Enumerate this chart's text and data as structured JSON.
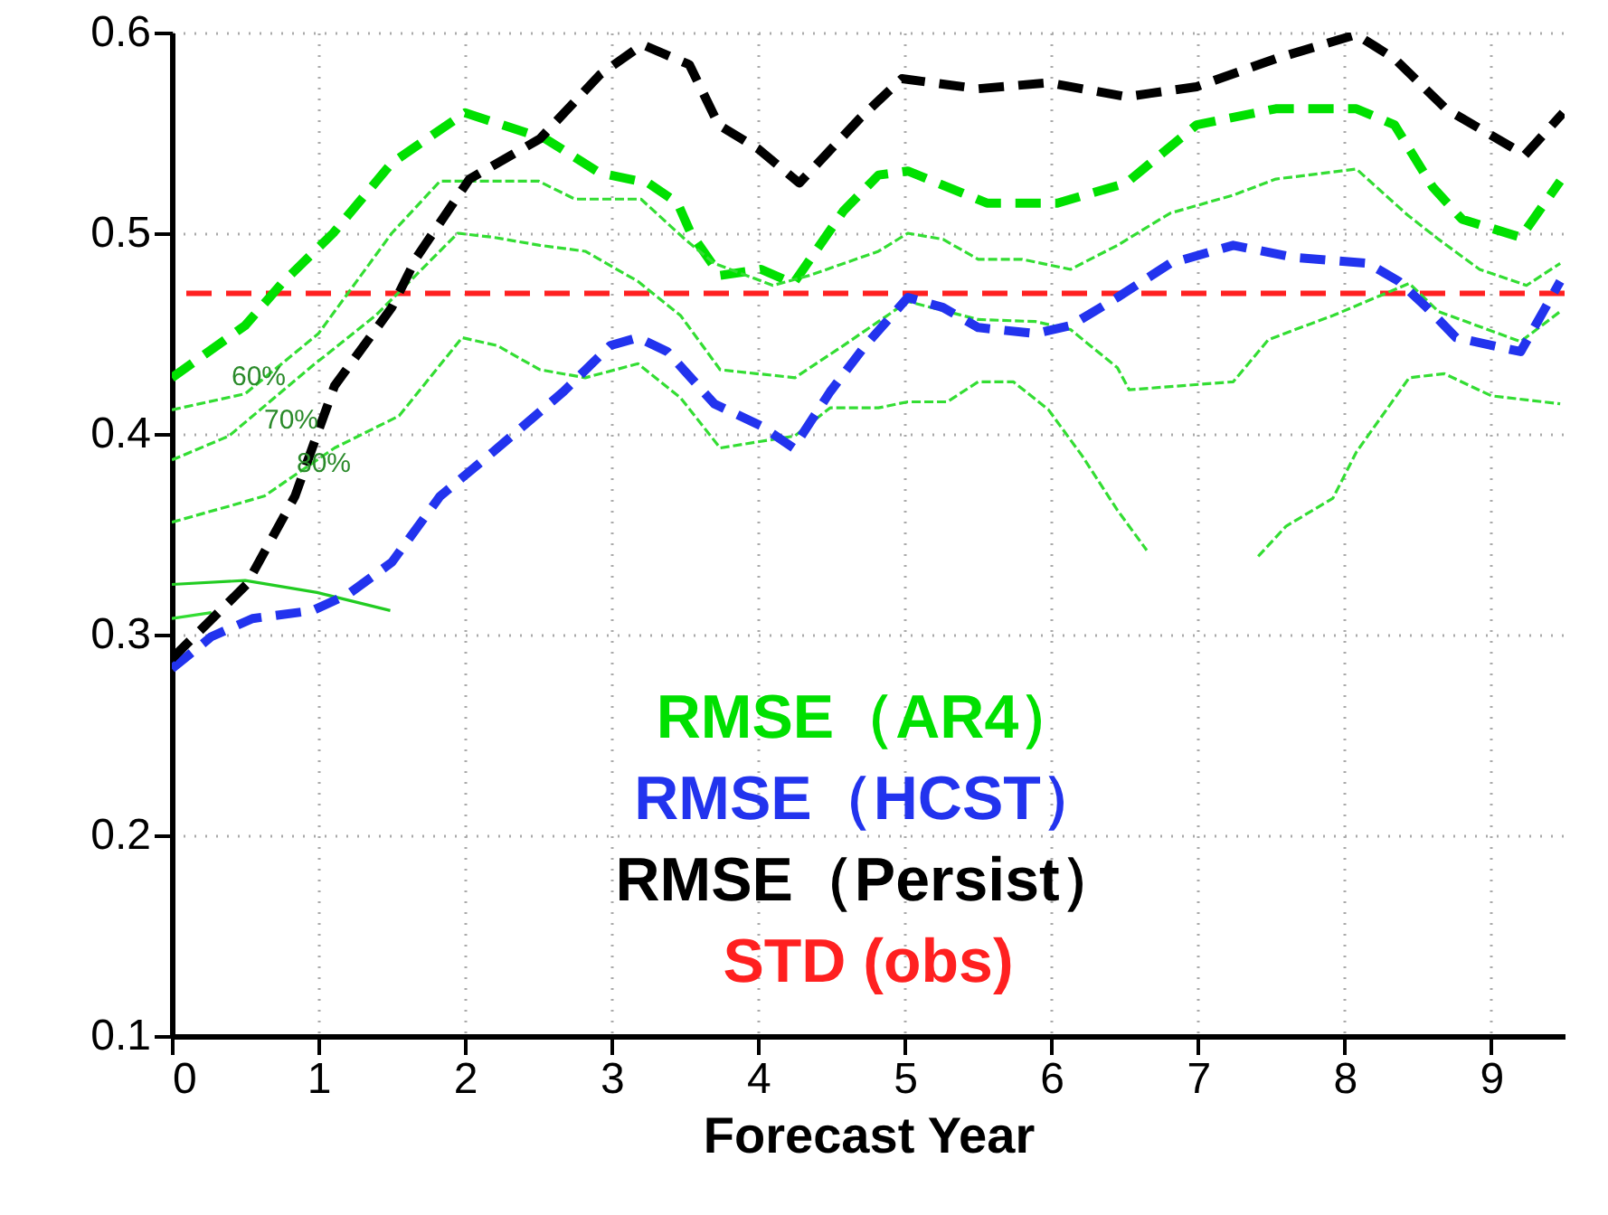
{
  "chart_data": {
    "type": "line",
    "xlabel": "Forecast Year",
    "xlim": [
      0,
      9.5
    ],
    "xticks": [
      0,
      1,
      2,
      3,
      4,
      5,
      6,
      7,
      8,
      9
    ],
    "ylim": [
      0.1,
      0.6
    ],
    "yticks": [
      0.1,
      0.2,
      0.3,
      0.4,
      0.5,
      0.6
    ],
    "grid": true,
    "legend": "bottom",
    "series": [
      {
        "name": "RMSE（AR4）",
        "color": "#00e000",
        "line_style": "dashed",
        "x": [
          0,
          0.5,
          0.75,
          1.1,
          1.5,
          2.0,
          2.55,
          2.92,
          3.25,
          3.45,
          3.54,
          3.74,
          4.02,
          4.24,
          4.58,
          4.82,
          5.02,
          5.56,
          6.04,
          6.51,
          6.99,
          7.53,
          8.08,
          8.34,
          8.6,
          8.8,
          9.2,
          9.47
        ],
        "values": [
          0.428,
          0.454,
          0.475,
          0.5,
          0.535,
          0.56,
          0.547,
          0.53,
          0.525,
          0.515,
          0.5,
          0.479,
          0.482,
          0.475,
          0.511,
          0.529,
          0.531,
          0.515,
          0.515,
          0.525,
          0.554,
          0.562,
          0.562,
          0.554,
          0.523,
          0.507,
          0.498,
          0.526
        ]
      },
      {
        "color": "#33dd33",
        "line_style": "dashed",
        "x": [
          0,
          0.5,
          1,
          1.5,
          1.83,
          2.5,
          2.75,
          3.2,
          3.5,
          3.7,
          4.1,
          4.35,
          4.82,
          5.02,
          5.26,
          5.5,
          5.8,
          6.13,
          6.45,
          6.81,
          7.24,
          7.53,
          8.08,
          8.43,
          8.64,
          8.92,
          9.24,
          9.47
        ],
        "values": [
          0.412,
          0.42,
          0.45,
          0.5,
          0.526,
          0.526,
          0.517,
          0.517,
          0.497,
          0.485,
          0.474,
          0.479,
          0.491,
          0.5,
          0.497,
          0.487,
          0.487,
          0.482,
          0.494,
          0.51,
          0.519,
          0.527,
          0.532,
          0.509,
          0.497,
          0.482,
          0.474,
          0.485
        ]
      },
      {
        "color": "#33dd33",
        "line_style": "dashed",
        "x": [
          0,
          0.39,
          0.96,
          1.39,
          1.95,
          2.19,
          2.51,
          2.82,
          3.18,
          3.47,
          3.74,
          4.25,
          4.58,
          5.02,
          5.5,
          5.89,
          6.13,
          6.45,
          6.53,
          7.24,
          7.48,
          7.92,
          8.44,
          8.64,
          9.2,
          9.47
        ],
        "values": [
          0.387,
          0.399,
          0.434,
          0.459,
          0.5,
          0.498,
          0.494,
          0.491,
          0.476,
          0.459,
          0.432,
          0.428,
          0.444,
          0.466,
          0.457,
          0.456,
          0.452,
          0.433,
          0.422,
          0.426,
          0.447,
          0.459,
          0.475,
          0.461,
          0.446,
          0.461
        ]
      },
      {
        "color": "#33dd33",
        "line_style": "dashed",
        "x": [
          0,
          0.39,
          0.63,
          1.11,
          1.55,
          1.98,
          2.22,
          2.51,
          2.82,
          3.18,
          3.47,
          3.74,
          4.25,
          4.49,
          4.82,
          5.02,
          5.29,
          5.5,
          5.74,
          5.98,
          6.21,
          6.45,
          6.65,
          7.0,
          7.41,
          7.6,
          7.92,
          8.08,
          8.44,
          8.68,
          9.0,
          9.47
        ],
        "values": [
          0.356,
          0.364,
          0.369,
          0.393,
          0.409,
          0.448,
          0.444,
          0.432,
          0.428,
          0.435,
          0.418,
          0.393,
          0.399,
          0.413,
          0.413,
          0.416,
          0.416,
          0.426,
          0.426,
          0.412,
          0.389,
          0.362,
          0.342,
          null,
          0.339,
          0.354,
          0.368,
          0.391,
          0.428,
          0.43,
          0.419,
          0.415
        ]
      },
      {
        "color": "#22cc22",
        "line_style": "solid",
        "x": [
          0,
          0.5,
          0.99,
          1.49
        ],
        "values": [
          0.325,
          0.327,
          0.321,
          0.312
        ]
      },
      {
        "color": "#33dd33",
        "line_style": "solid",
        "x": [
          0,
          0.27
        ],
        "values": [
          0.308,
          0.311
        ]
      },
      {
        "name": "RMSE（HCST）",
        "color": "#2233ee",
        "line_style": "dashed",
        "x": [
          0,
          0.27,
          0.55,
          0.96,
          1.2,
          1.5,
          1.83,
          2.19,
          2.67,
          2.99,
          3.18,
          3.38,
          3.7,
          4.02,
          4.24,
          4.49,
          4.73,
          5.02,
          5.26,
          5.5,
          5.89,
          6.13,
          6.45,
          6.81,
          7.24,
          7.65,
          8.16,
          8.37,
          8.56,
          8.76,
          9.2,
          9.47
        ],
        "values": [
          0.283,
          0.299,
          0.308,
          0.312,
          0.32,
          0.336,
          0.369,
          0.391,
          0.421,
          0.444,
          0.448,
          0.441,
          0.415,
          0.404,
          0.393,
          0.421,
          0.444,
          0.468,
          0.463,
          0.453,
          0.45,
          0.454,
          0.468,
          0.485,
          0.494,
          0.488,
          0.485,
          0.476,
          0.463,
          0.448,
          0.441,
          0.476
        ]
      },
      {
        "name": "RMSE（Persist）",
        "color": "#000000",
        "line_style": "dashed",
        "x": [
          0,
          0.51,
          0.84,
          1.11,
          1.5,
          1.67,
          2.03,
          2.51,
          2.92,
          3.21,
          3.53,
          3.73,
          4.0,
          4.28,
          4.69,
          4.98,
          5.5,
          5.98,
          6.51,
          6.99,
          7.53,
          8.08,
          8.34,
          8.69,
          9.23,
          9.49
        ],
        "values": [
          0.288,
          0.325,
          0.369,
          0.424,
          0.463,
          0.488,
          0.527,
          0.547,
          0.579,
          0.594,
          0.584,
          0.554,
          0.542,
          0.525,
          0.557,
          0.577,
          0.572,
          0.575,
          0.568,
          0.573,
          0.587,
          0.599,
          0.587,
          0.562,
          0.539,
          0.56
        ]
      }
    ],
    "ref_lines": [
      {
        "axis": "y",
        "value": 0.47,
        "label": "STD (obs)",
        "color": "#ff2020",
        "line_style": "dashed"
      }
    ],
    "annotations": [
      "60%",
      "70%",
      "80%"
    ]
  }
}
